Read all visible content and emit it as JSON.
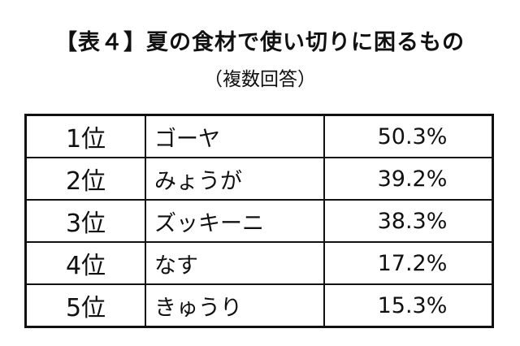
{
  "header": {
    "title": "【表４】夏の食材で使い切りに困るもの",
    "subtitle": "（複数回答）"
  },
  "table": {
    "rows": [
      [
        "1位",
        "ゴーヤ",
        "50.3%"
      ],
      [
        "2位",
        "みょうが",
        "39.2%"
      ],
      [
        "3位",
        "ズッキーニ",
        "38.3%"
      ],
      [
        "4位",
        "なす",
        "17.2%"
      ],
      [
        "5位",
        "きゅうり",
        "15.3%"
      ]
    ]
  }
}
